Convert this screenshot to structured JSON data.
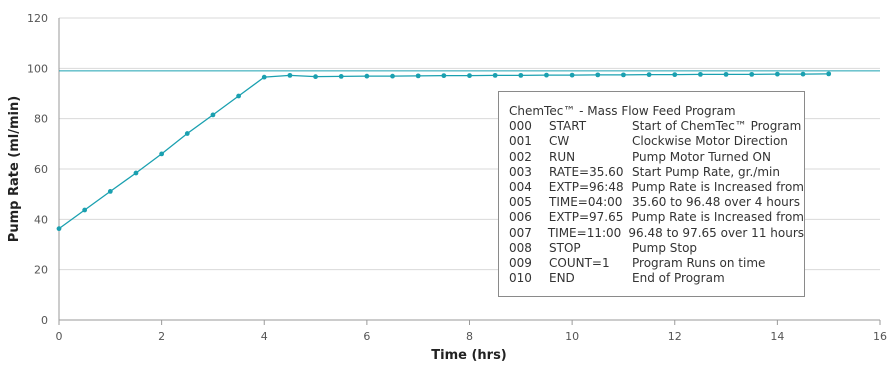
{
  "chart_data": {
    "type": "line",
    "title": "",
    "xlabel": "Time (hrs)",
    "ylabel": "Pump Rate (ml/min)",
    "xlim": [
      0,
      16
    ],
    "ylim": [
      0,
      120
    ],
    "xticks": [
      0,
      2,
      4,
      6,
      8,
      10,
      12,
      14,
      16
    ],
    "yticks": [
      0,
      20,
      40,
      60,
      80,
      100,
      120
    ],
    "grid": true,
    "reference_line_y": 99,
    "series": [
      {
        "color": "#1aa0b0",
        "x": [
          0,
          0.5,
          1,
          1.5,
          2,
          2.5,
          3,
          3.5,
          4,
          4.5,
          5,
          5.5,
          6,
          6.5,
          7,
          7.5,
          8,
          8.5,
          9,
          9.5,
          10,
          10.5,
          11,
          11.5,
          12,
          12.5,
          13,
          13.5,
          14,
          14.5,
          15
        ],
        "values": [
          36.3,
          43.7,
          51.1,
          58.4,
          66.0,
          74.1,
          81.5,
          89.0,
          96.5,
          97.2,
          96.7,
          96.8,
          96.9,
          96.9,
          97.0,
          97.1,
          97.1,
          97.2,
          97.2,
          97.3,
          97.3,
          97.4,
          97.4,
          97.5,
          97.5,
          97.6,
          97.6,
          97.6,
          97.7,
          97.7,
          97.8
        ]
      }
    ]
  },
  "legend": {
    "title": "ChemTec™ - Mass Flow Feed Program",
    "rows": [
      {
        "code": "000",
        "cmd": "START",
        "desc": "Start of ChemTec™ Program"
      },
      {
        "code": "001",
        "cmd": "CW",
        "desc": "Clockwise Motor Direction"
      },
      {
        "code": "002",
        "cmd": "RUN",
        "desc": "Pump Motor Turned ON"
      },
      {
        "code": "003",
        "cmd": "RATE=35.60",
        "desc": "Start Pump Rate, gr./min"
      },
      {
        "code": "004",
        "cmd": "EXTP=96:48",
        "desc": "Pump Rate is Increased from"
      },
      {
        "code": "005",
        "cmd": "TIME=04:00",
        "desc": "35.60 to 96.48 over 4 hours"
      },
      {
        "code": "006",
        "cmd": "EXTP=97.65",
        "desc": "Pump Rate is Increased from"
      },
      {
        "code": "007",
        "cmd": "TIME=11:00",
        "desc": "96.48 to 97.65 over 11 hours"
      },
      {
        "code": "008",
        "cmd": "STOP",
        "desc": "Pump Stop"
      },
      {
        "code": "009",
        "cmd": "COUNT=1",
        "desc": "Program Runs on time"
      },
      {
        "code": "010",
        "cmd": "END",
        "desc": "End of Program"
      }
    ]
  }
}
